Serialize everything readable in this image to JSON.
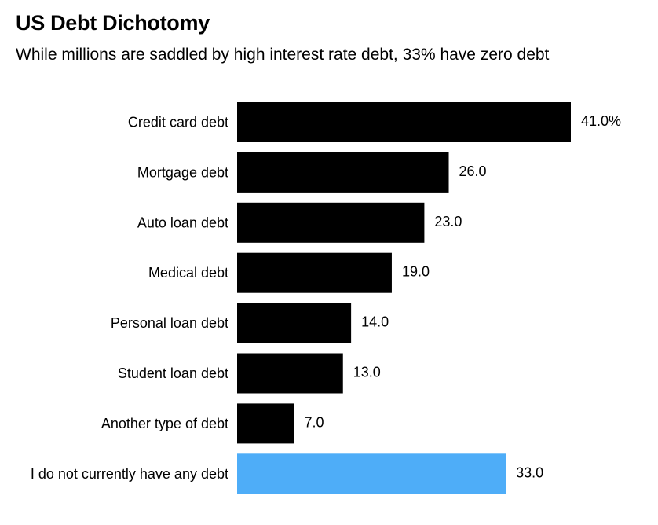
{
  "chart_data": {
    "type": "bar",
    "orientation": "horizontal",
    "title": "US Debt Dichotomy",
    "subtitle": "While millions are saddled by high interest rate debt, 33% have zero debt",
    "categories": [
      "Credit card debt",
      "Mortgage debt",
      "Auto loan debt",
      "Medical debt",
      "Personal loan debt",
      "Student loan debt",
      "Another type of debt",
      "I do not currently have any debt"
    ],
    "values": [
      41.0,
      26.0,
      23.0,
      19.0,
      14.0,
      13.0,
      7.0,
      33.0
    ],
    "value_labels": [
      "41.0%",
      "26.0",
      "23.0",
      "19.0",
      "14.0",
      "13.0",
      "7.0",
      "33.0"
    ],
    "bar_colors": [
      "#000000",
      "#000000",
      "#000000",
      "#000000",
      "#000000",
      "#000000",
      "#000000",
      "#4EADF8"
    ],
    "xlim": [
      0,
      41
    ],
    "grid": false,
    "legend": "none"
  }
}
